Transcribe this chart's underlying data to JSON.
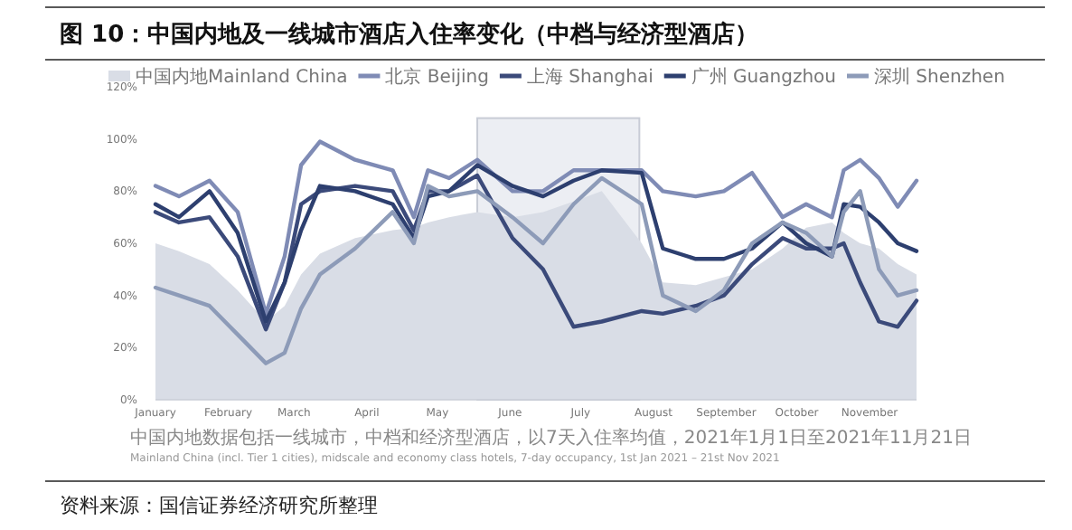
{
  "chart_data": {
    "type": "line",
    "title": "图 10：中国内地及一线城市酒店入住率变化（中档与经济型酒店）",
    "annotations": [
      "中国内地数据包括一线城市，中档和经济型酒店，以7天入住率均值，2021年1月1日至2021年11月21日",
      "Mainland China (incl. Tier 1 cities), midscale and economy class hotels, 7-day occupancy, 1st Jan 2021 – 21st Nov 2021",
      "资料来源：国信证券经济研究所整理"
    ],
    "x": [
      "2021-01-01",
      "2021-01-11",
      "2021-01-24",
      "2021-02-05",
      "2021-02-17",
      "2021-02-25",
      "2021-03-04",
      "2021-03-12",
      "2021-03-27",
      "2021-04-12",
      "2021-04-21",
      "2021-04-27",
      "2021-05-06",
      "2021-05-18",
      "2021-06-02",
      "2021-06-15",
      "2021-06-28",
      "2021-07-10",
      "2021-07-27",
      "2021-08-05",
      "2021-08-19",
      "2021-08-31",
      "2021-09-12",
      "2021-09-25",
      "2021-10-05",
      "2021-10-16",
      "2021-10-21",
      "2021-10-28",
      "2021-11-05",
      "2021-11-13",
      "2021-11-21"
    ],
    "series": [
      {
        "name": "中国内地Mainland China",
        "type": "area",
        "color": "#d9dde6",
        "values": [
          60,
          57,
          52,
          42,
          30,
          36,
          48,
          56,
          62,
          65,
          66,
          68,
          70,
          72,
          70,
          72,
          76,
          80,
          60,
          45,
          44,
          47,
          50,
          58,
          66,
          68,
          64,
          60,
          58,
          52,
          48
        ]
      },
      {
        "name": "北京 Beijing",
        "color": "#7f8bb5",
        "values": [
          82,
          78,
          84,
          72,
          33,
          55,
          90,
          99,
          92,
          88,
          70,
          88,
          85,
          92,
          80,
          80,
          88,
          88,
          88,
          80,
          78,
          80,
          87,
          70,
          75,
          70,
          88,
          92,
          85,
          74,
          84
        ]
      },
      {
        "name": "上海 Shanghai",
        "color": "#3b4a7a",
        "values": [
          72,
          68,
          70,
          55,
          27,
          45,
          75,
          80,
          82,
          80,
          65,
          80,
          80,
          86,
          62,
          50,
          28,
          30,
          34,
          33,
          36,
          40,
          52,
          62,
          58,
          58,
          60,
          45,
          30,
          28,
          38
        ]
      },
      {
        "name": "广州 Guangzhou",
        "color": "#2d3f6f",
        "values": [
          75,
          70,
          80,
          64,
          30,
          45,
          65,
          82,
          80,
          75,
          62,
          78,
          80,
          90,
          82,
          78,
          84,
          88,
          87,
          58,
          54,
          54,
          58,
          68,
          60,
          55,
          75,
          74,
          68,
          60,
          57
        ]
      },
      {
        "name": "深圳 Shenzhen",
        "color": "#8d9bb8",
        "values": [
          43,
          40,
          36,
          25,
          14,
          18,
          35,
          48,
          58,
          72,
          60,
          82,
          78,
          80,
          70,
          60,
          75,
          85,
          75,
          40,
          34,
          42,
          60,
          68,
          64,
          55,
          72,
          80,
          50,
          40,
          42
        ]
      }
    ],
    "xlim": [
      "2021-01-01",
      "2021-11-21"
    ],
    "xticks": [
      {
        "value": "2021-01-01",
        "label": "January"
      },
      {
        "value": "2021-02-01",
        "label": "February"
      },
      {
        "value": "2021-03-01",
        "label": "March"
      },
      {
        "value": "2021-04-01",
        "label": "April"
      },
      {
        "value": "2021-05-01",
        "label": "May"
      },
      {
        "value": "2021-06-01",
        "label": "June"
      },
      {
        "value": "2021-07-01",
        "label": "July"
      },
      {
        "value": "2021-08-01",
        "label": "August"
      },
      {
        "value": "2021-09-01",
        "label": "September"
      },
      {
        "value": "2021-10-01",
        "label": "October"
      },
      {
        "value": "2021-11-01",
        "label": "November"
      }
    ],
    "ylim": [
      0,
      120
    ],
    "yticks": [
      {
        "value": 0,
        "label": "0%"
      },
      {
        "value": 20,
        "label": "20%"
      },
      {
        "value": 40,
        "label": "40%"
      },
      {
        "value": 60,
        "label": "60%"
      },
      {
        "value": 80,
        "label": "80%"
      },
      {
        "value": 100,
        "label": "100%"
      },
      {
        "value": 120,
        "label": "120%"
      }
    ],
    "bands": [
      {
        "axis": "x",
        "from": "2021-05-18",
        "to": "2021-07-26",
        "color": "#eceef3"
      }
    ],
    "legend": "top",
    "marker": "none",
    "line_style": "solid",
    "grid": false
  }
}
